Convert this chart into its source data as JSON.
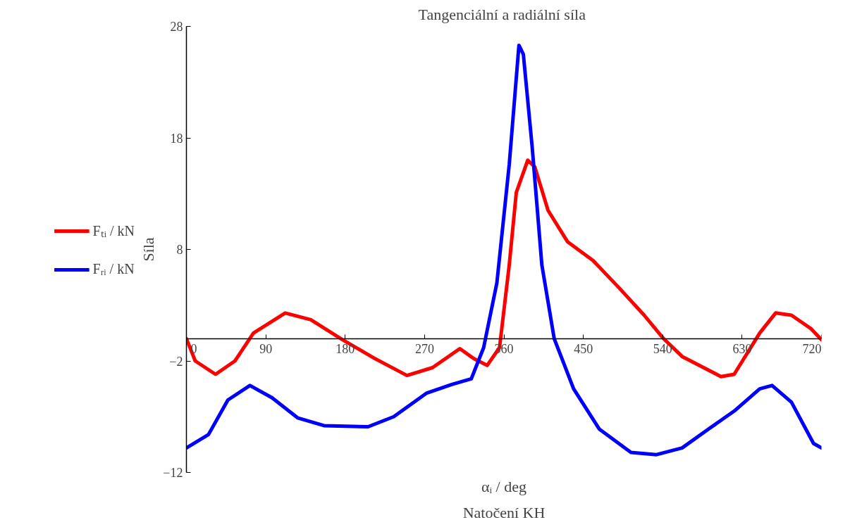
{
  "chart_data": {
    "type": "line",
    "title": "Tangenciální  a radiální síla",
    "xlabel": "αᵢ / deg",
    "ylabel": "Síla",
    "annotations": [
      "Natočení KH"
    ],
    "xlim": [
      0,
      720
    ],
    "xticks": [
      0,
      90,
      180,
      270,
      360,
      450,
      540,
      630,
      720
    ],
    "ylim": [
      -12,
      28
    ],
    "yticks": [
      {
        "value": -12,
        "label": "−12"
      },
      {
        "value": -2,
        "label": "−2"
      },
      8,
      18,
      28
    ],
    "grid": false,
    "legend": "left",
    "marker": "none",
    "line_style": "solid",
    "series": [
      {
        "name": "Fₜᵢ / kN",
        "color": "#ff0000",
        "x": [
          0,
          10,
          33,
          55,
          76,
          112,
          141,
          177,
          214,
          250,
          279,
          310,
          326,
          341,
          355,
          366,
          374,
          387,
          395,
          410,
          432,
          461,
          490,
          519,
          541,
          562,
          606,
          621,
          650,
          668,
          686,
          708,
          720
        ],
        "values": [
          0,
          -2,
          -3.2,
          -2,
          0.5,
          2.3,
          1.7,
          -0.1,
          -1.8,
          -3.3,
          -2.6,
          -0.9,
          -1.8,
          -2.4,
          -0.8,
          6.6,
          13.1,
          16,
          15.4,
          11.5,
          8.7,
          7,
          4.6,
          2.1,
          0,
          -1.6,
          -3.4,
          -3.2,
          0.5,
          2.3,
          2.1,
          0.9,
          -0.1
        ]
      },
      {
        "name": "Fᵣᵢ / kN",
        "color": "#0000ff",
        "x": [
          0,
          25,
          47,
          72,
          97,
          126,
          156,
          206,
          235,
          272,
          301,
          323,
          337,
          352,
          366,
          377,
          382,
          392,
          403,
          417,
          439,
          468,
          504,
          533,
          562,
          592,
          621,
          650,
          664,
          686,
          711,
          720
        ],
        "values": [
          -9.8,
          -8.6,
          -5.5,
          -4.2,
          -5.3,
          -7.1,
          -7.8,
          -7.9,
          -7,
          -4.9,
          -4.1,
          -3.6,
          -0.8,
          5,
          15.6,
          26.3,
          25.5,
          17.2,
          6.6,
          0,
          -4.5,
          -8.1,
          -10.2,
          -10.4,
          -9.8,
          -8.1,
          -6.5,
          -4.5,
          -4.2,
          -5.7,
          -9.4,
          -9.8
        ]
      }
    ]
  }
}
